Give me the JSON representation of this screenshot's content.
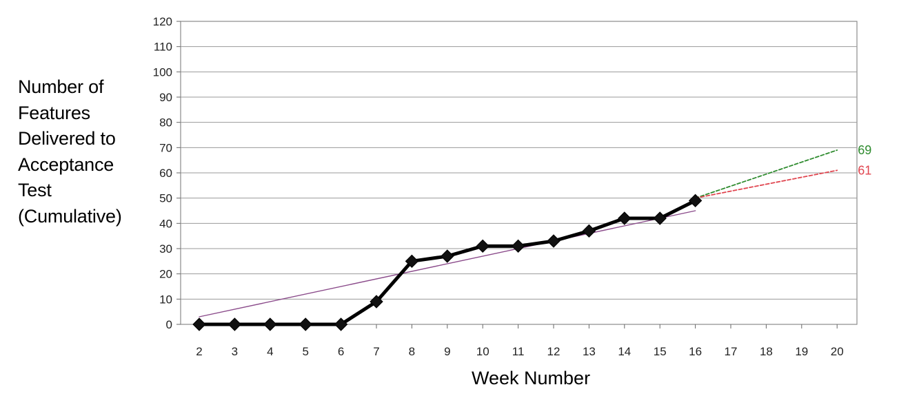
{
  "chart_data": {
    "type": "line",
    "xlabel": "Week Number",
    "ylabel_lines": [
      "Number of",
      "Features",
      "Delivered to",
      "Acceptance",
      "Test",
      "(Cumulative)"
    ],
    "x_categories": [
      "2",
      "3",
      "4",
      "5",
      "6",
      "7",
      "8",
      "9",
      "10",
      "11",
      "12",
      "13",
      "14",
      "15",
      "16",
      "17",
      "18",
      "19",
      "20"
    ],
    "ylim": [
      0,
      120
    ],
    "yticks": [
      0,
      10,
      20,
      30,
      40,
      50,
      60,
      70,
      80,
      90,
      100,
      110,
      120
    ],
    "grid": true,
    "series": [
      {
        "kind": "actual",
        "color": "#000000",
        "marker": "diamond",
        "x": [
          2,
          3,
          4,
          5,
          6,
          7,
          8,
          9,
          10,
          11,
          12,
          13,
          14,
          15,
          16
        ],
        "y": [
          0,
          0,
          0,
          0,
          0,
          9,
          25,
          27,
          31,
          31,
          33,
          37,
          42,
          42,
          49
        ]
      },
      {
        "kind": "trend",
        "color": "#8a4a8a",
        "x": [
          2,
          16
        ],
        "y": [
          3,
          45
        ]
      },
      {
        "kind": "projection-high",
        "color": "#2e8b2e",
        "dashed": true,
        "x": [
          16,
          20
        ],
        "y": [
          50,
          69
        ],
        "end_label": "69"
      },
      {
        "kind": "projection-low",
        "color": "#e0454f",
        "dashed": true,
        "x": [
          16,
          20
        ],
        "y": [
          50,
          61
        ],
        "end_label": "61"
      }
    ]
  }
}
